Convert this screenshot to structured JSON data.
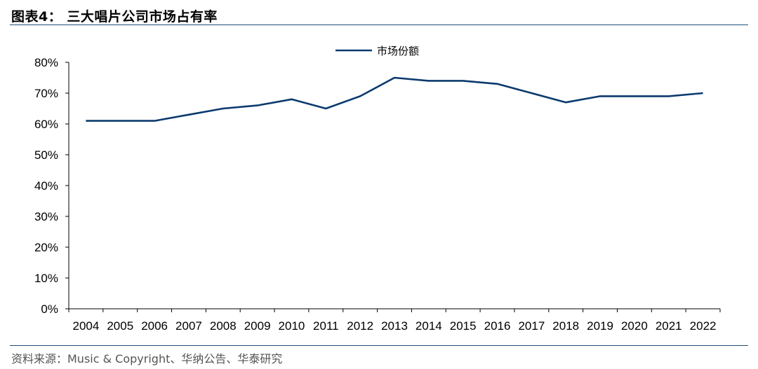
{
  "figure": {
    "title": "图表4：  三大唱片公司市场占有率",
    "source": "资料来源：Music & Copyright、华纳公告、华泰研究"
  },
  "colors": {
    "series": "#0b3a6e",
    "axis": "#000000",
    "rule": "#1f4e79"
  },
  "chart_data": {
    "type": "line",
    "title": "",
    "xlabel": "",
    "ylabel": "",
    "x": [
      "2004",
      "2005",
      "2006",
      "2007",
      "2008",
      "2009",
      "2010",
      "2011",
      "2012",
      "2013",
      "2014",
      "2015",
      "2016",
      "2017",
      "2018",
      "2019",
      "2020",
      "2021",
      "2022"
    ],
    "series": [
      {
        "name": "市场份额",
        "values": [
          61,
          61,
          61,
          63,
          65,
          66,
          68,
          65,
          69,
          75,
          74,
          74,
          73,
          70,
          67,
          69,
          69,
          69,
          70
        ]
      }
    ],
    "ylim": [
      0,
      80
    ],
    "yticks": [
      "0%",
      "10%",
      "20%",
      "30%",
      "40%",
      "50%",
      "60%",
      "70%",
      "80%"
    ],
    "grid": false,
    "legend": "top-center"
  }
}
